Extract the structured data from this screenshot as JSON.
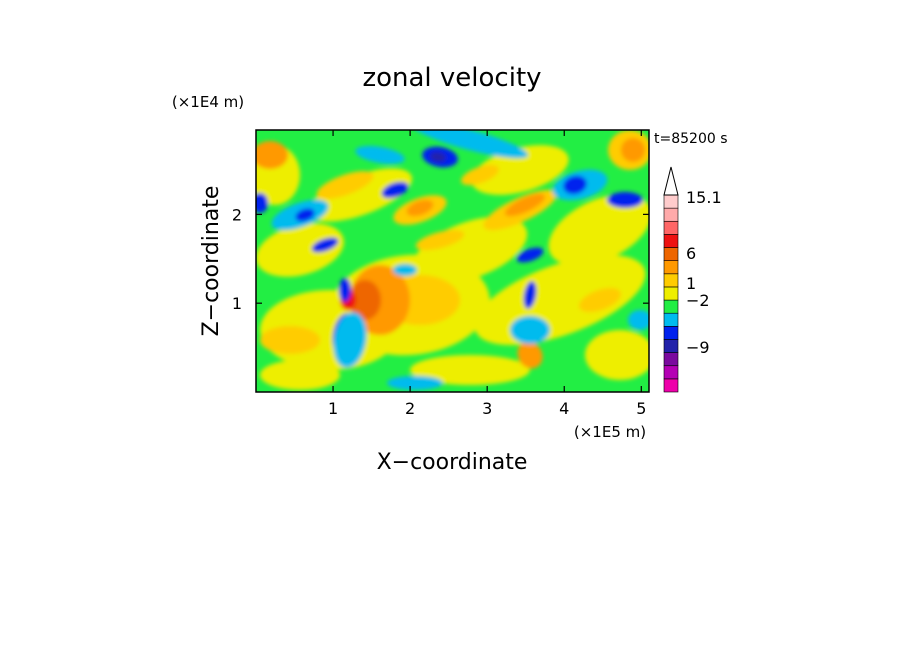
{
  "chart_data": {
    "type": "heatmap",
    "title": "zonal velocity",
    "time_label": "t=85200 s",
    "xlabel": "X−coordinate",
    "ylabel": "Z−coordinate",
    "x_unit": "(×1E5 m)",
    "y_unit": "(×1E4 m)",
    "xlim": [
      0,
      5.1
    ],
    "ylim": [
      0,
      2.95
    ],
    "x_ticks": [
      1,
      2,
      3,
      4,
      5
    ],
    "y_ticks": [
      1,
      2
    ],
    "colorbar": {
      "tick_labels": [
        "15.1",
        "6",
        "1",
        "−2",
        "−9"
      ],
      "colors": [
        "#ee00aa",
        "#b400b4",
        "#7a0a9e",
        "#2222aa",
        "#0022ee",
        "#00bbee",
        "#22ee44",
        "#eeee00",
        "#ffcc00",
        "#ff9900",
        "#ee6600",
        "#ee1111",
        "#ff6666",
        "#ffaaaa",
        "#ffcccc"
      ]
    },
    "field_description": "contoured zonal velocity field: layered warm/cool bands tilted across the domain, a broad positive (yellow/orange) region near x=1.3-3.0, strong narrow dipoles near x=1.2 and x=3.6"
  }
}
